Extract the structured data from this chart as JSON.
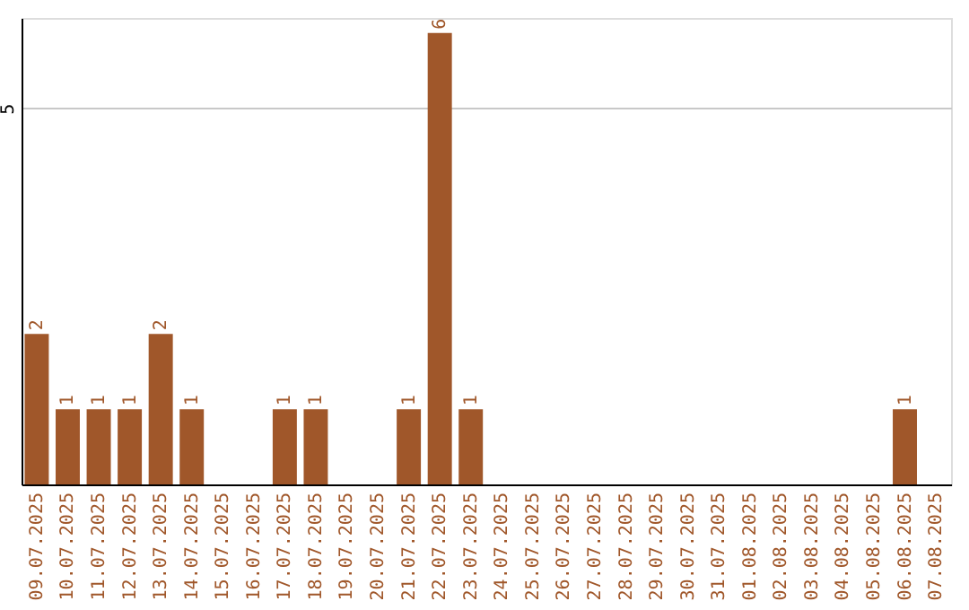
{
  "chart_data": {
    "type": "bar",
    "categories": [
      "09.07.2025",
      "10.07.2025",
      "11.07.2025",
      "12.07.2025",
      "13.07.2025",
      "14.07.2025",
      "15.07.2025",
      "16.07.2025",
      "17.07.2025",
      "18.07.2025",
      "19.07.2025",
      "20.07.2025",
      "21.07.2025",
      "22.07.2025",
      "23.07.2025",
      "24.07.2025",
      "25.07.2025",
      "26.07.2025",
      "27.07.2025",
      "28.07.2025",
      "29.07.2025",
      "30.07.2025",
      "31.07.2025",
      "01.08.2025",
      "02.08.2025",
      "03.08.2025",
      "04.08.2025",
      "05.08.2025",
      "06.08.2025",
      "07.08.2025"
    ],
    "values": [
      2,
      1,
      1,
      1,
      2,
      1,
      0,
      0,
      1,
      1,
      0,
      0,
      1,
      6,
      1,
      0,
      0,
      0,
      0,
      0,
      0,
      0,
      0,
      0,
      0,
      0,
      0,
      0,
      1,
      0
    ],
    "value_labels": [
      "2",
      "1",
      "1",
      "1",
      "2",
      "1",
      null,
      null,
      "1",
      "1",
      null,
      null,
      "1",
      "6",
      "1",
      null,
      null,
      null,
      null,
      null,
      null,
      null,
      null,
      null,
      null,
      null,
      null,
      null,
      "1",
      null
    ],
    "color": "#a0572a",
    "ylim": [
      0,
      6.2
    ],
    "yticks": [
      {
        "value": 0,
        "label": null
      },
      5
    ],
    "grid": "y"
  }
}
